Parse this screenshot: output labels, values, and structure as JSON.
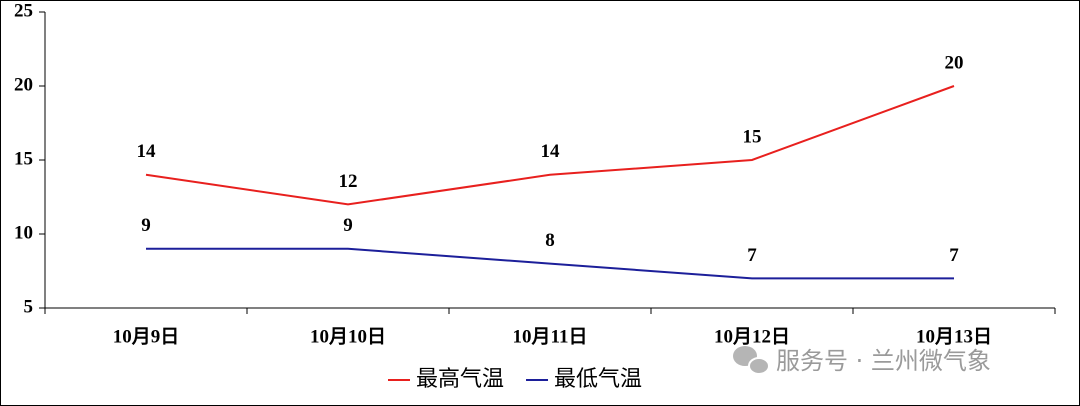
{
  "chart_data": {
    "type": "line",
    "categories": [
      "10月9日",
      "10月10日",
      "10月11日",
      "10月12日",
      "10月13日"
    ],
    "series": [
      {
        "name": "最高气温",
        "color": "#e8201e",
        "values": [
          14,
          12,
          14,
          15,
          20
        ]
      },
      {
        "name": "最低气温",
        "color": "#1c1f9a",
        "values": [
          9,
          9,
          8,
          7,
          7
        ]
      }
    ],
    "ylim": [
      5,
      25
    ],
    "yticks": [
      5,
      10,
      15,
      20,
      25
    ],
    "legend": "bottom",
    "watermark": "服务号 · 兰州微气象"
  }
}
